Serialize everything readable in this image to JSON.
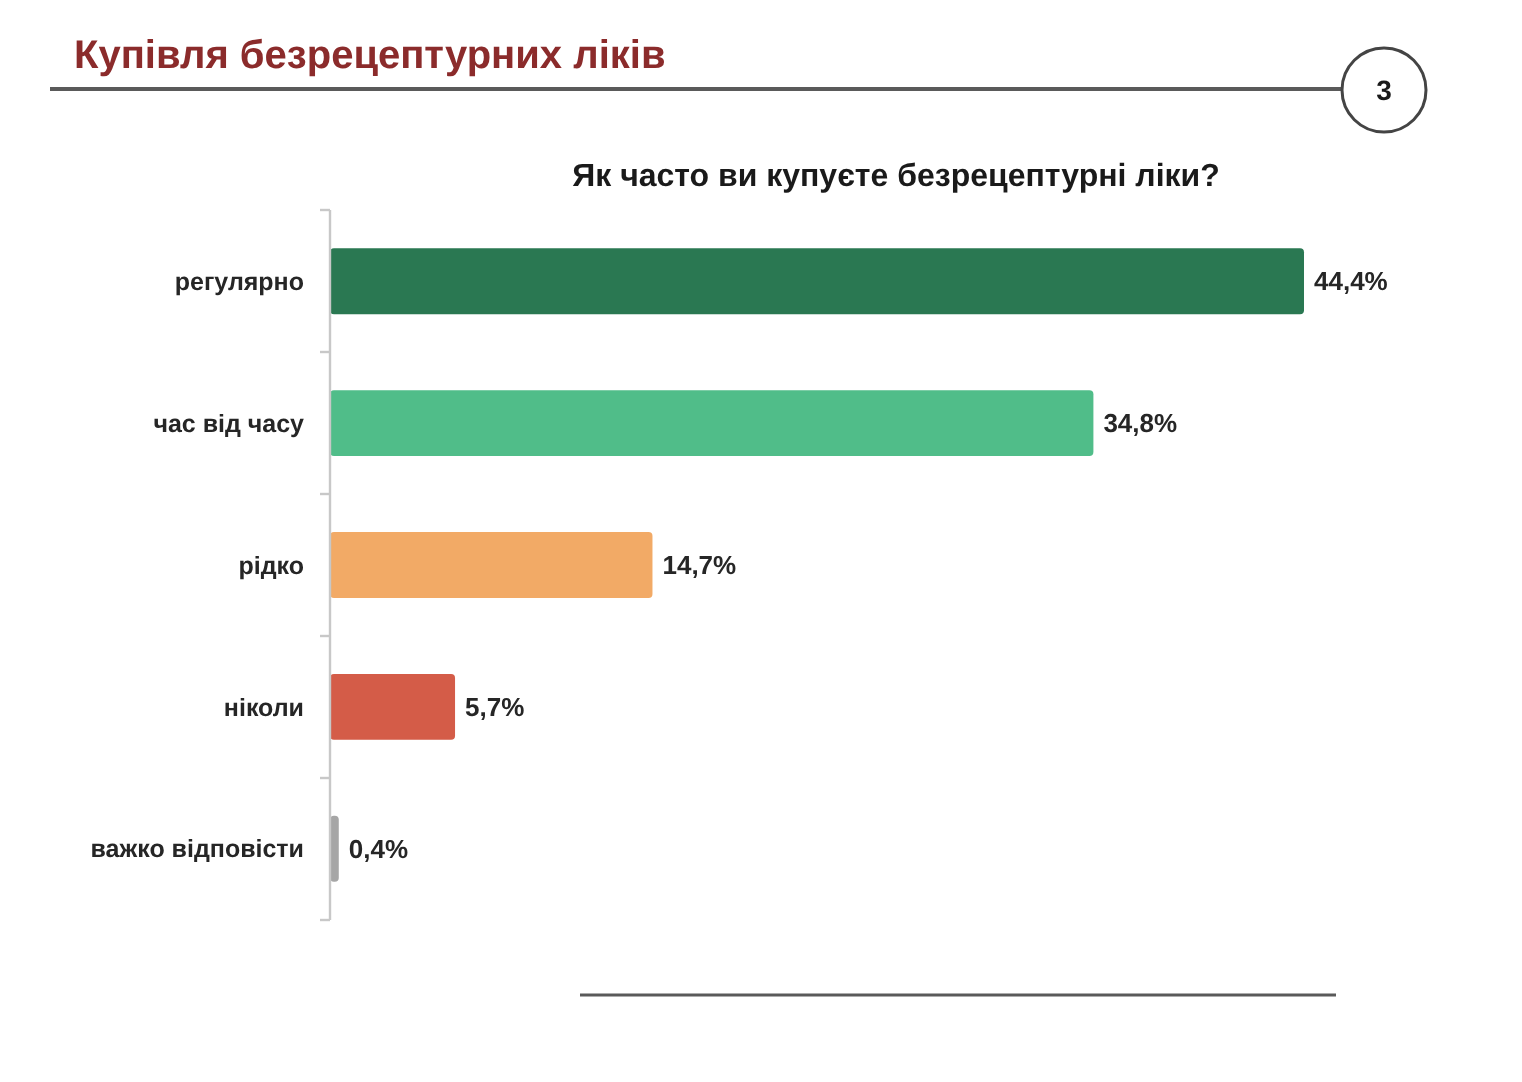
{
  "chart_data": {
    "type": "bar",
    "orientation": "horizontal",
    "title": "Купівля безрецептурних ліків",
    "subtitle": "Як часто ви купуєте безрецептурні ліки?",
    "annotations": [
      "3"
    ],
    "categories": [
      "регулярно",
      "час від часу",
      "рідко",
      "ніколи",
      "важко відповісти"
    ],
    "values": [
      44.4,
      34.8,
      14.7,
      5.7,
      0.4
    ],
    "colors": [
      "#2a7852",
      "#50bd89",
      "#f2aa66",
      "#d45c48",
      "#a6a6a6"
    ],
    "value_labels": [
      "44,4%",
      "34,8%",
      "14,7%",
      "5,7%",
      "0,4%"
    ]
  }
}
